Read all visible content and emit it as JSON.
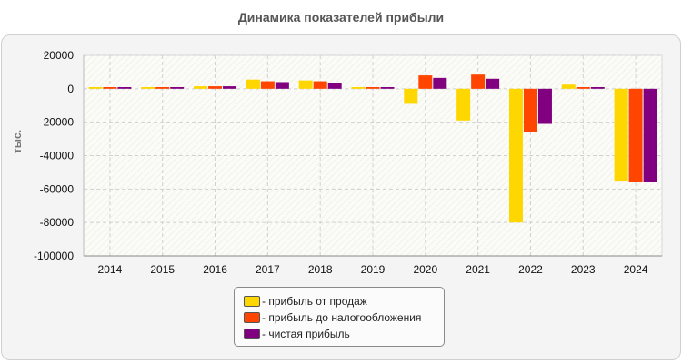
{
  "chart_data": {
    "type": "bar",
    "title": "Динамика показателей прибыли",
    "ylabel": "тыс.",
    "xlabel": "",
    "categories": [
      "2014",
      "2015",
      "2016",
      "2017",
      "2018",
      "2019",
      "2020",
      "2021",
      "2022",
      "2023",
      "2024"
    ],
    "series": [
      {
        "name": "прибыль от продаж",
        "color": "#ffd700",
        "values": [
          1000,
          1000,
          1500,
          5500,
          5000,
          1000,
          -9000,
          -19000,
          -80000,
          2500,
          -55000
        ]
      },
      {
        "name": "прибыль до налогообложения",
        "color": "#ff4500",
        "values": [
          1000,
          1000,
          1500,
          4500,
          4500,
          1000,
          8000,
          8500,
          -26000,
          1000,
          -56000
        ]
      },
      {
        "name": "чистая прибыль",
        "color": "#800080",
        "values": [
          1000,
          1000,
          1500,
          4000,
          3500,
          1000,
          6500,
          6000,
          -21000,
          1000,
          -56000
        ]
      }
    ],
    "ylim": [
      -100000,
      20000
    ],
    "yticks": [
      20000,
      0,
      -20000,
      -40000,
      -60000,
      -80000,
      -100000
    ],
    "grid": true,
    "legend_position": "bottom-center"
  }
}
